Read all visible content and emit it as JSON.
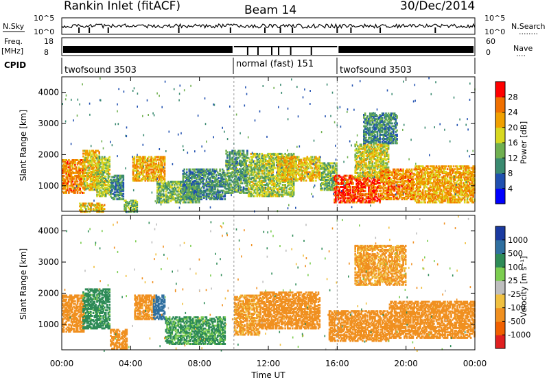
{
  "header": {
    "station": "Rankin Inlet (fitACF)",
    "beam": "Beam 14",
    "date": "30/Dec/2014"
  },
  "noise_panel": {
    "left_label": "N.Sky",
    "right_label": "N.Search",
    "right_dots": "........",
    "left_ticks": [
      "10^5",
      "10^0"
    ],
    "right_ticks": [
      "10^5",
      "10^0"
    ]
  },
  "freq_panel": {
    "left_label_1": "Freq.",
    "left_label_2": "[MHz]",
    "left_ticks": [
      "18",
      "8"
    ],
    "right_label": "Nave",
    "right_dots": "....",
    "right_ticks": [
      "60",
      "0"
    ]
  },
  "cpid_panel": {
    "label": "CPID",
    "segments": [
      {
        "label": "twofsound 3503",
        "start_h": 0,
        "end_h": 10
      },
      {
        "label": "normal (fast) 151",
        "start_h": 10,
        "end_h": 16
      },
      {
        "label": "twofsound 3503",
        "start_h": 16,
        "end_h": 24
      }
    ]
  },
  "axes": {
    "ylabel": "Slant Range [km]",
    "yticks": [
      "4000",
      "3000",
      "2000",
      "1000"
    ],
    "xticks": [
      "00:00",
      "04:00",
      "08:00",
      "12:00",
      "16:00",
      "20:00",
      "00:00"
    ],
    "xlabel": "Time UT"
  },
  "colorbars": {
    "power": {
      "label": "Power [dB]",
      "ticks": [
        "28",
        "24",
        "20",
        "16",
        "12",
        "8",
        "4"
      ],
      "colors": [
        "#0000ff",
        "#2050b0",
        "#3a8a70",
        "#70b050",
        "#d8d820",
        "#f0a000",
        "#f07000",
        "#ff0000"
      ]
    },
    "velocity": {
      "label": "Velocity [m s⁻¹]",
      "ticks": [
        "1000",
        "500",
        "100",
        "25",
        "-25",
        "-100",
        "-500",
        "-1000"
      ],
      "colors": [
        "#1a3aa0",
        "#3070a0",
        "#2e8b57",
        "#7ccd50",
        "#bebebe",
        "#f0c040",
        "#f09020",
        "#f06000",
        "#e02020"
      ]
    }
  },
  "chart_data": {
    "type": "heatmap",
    "x_range_hours": [
      0,
      24
    ],
    "y_range_km": [
      180,
      4500
    ],
    "time_resolution_note": "",
    "power_blobs": [
      {
        "t0": 0.0,
        "t1": 1.3,
        "r0": 800,
        "r1": 1900,
        "value": 24
      },
      {
        "t0": 1.2,
        "t1": 2.2,
        "r0": 900,
        "r1": 2200,
        "value": 20
      },
      {
        "t0": 2.0,
        "t1": 2.8,
        "r0": 700,
        "r1": 2000,
        "value": 16
      },
      {
        "t0": 1.0,
        "t1": 2.5,
        "r0": 200,
        "r1": 500,
        "value": 20
      },
      {
        "t0": 2.8,
        "t1": 3.6,
        "r0": 600,
        "r1": 1400,
        "value": 10
      },
      {
        "t0": 3.6,
        "t1": 4.4,
        "r0": 200,
        "r1": 600,
        "value": 14
      },
      {
        "t0": 4.1,
        "t1": 6.0,
        "r0": 1200,
        "r1": 2000,
        "value": 22
      },
      {
        "t0": 5.5,
        "t1": 8.0,
        "r0": 500,
        "r1": 1200,
        "value": 14
      },
      {
        "t0": 7.0,
        "t1": 9.5,
        "r0": 600,
        "r1": 1600,
        "value": 10
      },
      {
        "t0": 9.5,
        "t1": 10.8,
        "r0": 800,
        "r1": 2200,
        "value": 12
      },
      {
        "t0": 10.8,
        "t1": 13.5,
        "r0": 700,
        "r1": 2100,
        "value": 16
      },
      {
        "t0": 12.5,
        "t1": 15.0,
        "r0": 1200,
        "r1": 2000,
        "value": 20
      },
      {
        "t0": 15.0,
        "t1": 16.0,
        "r0": 900,
        "r1": 1800,
        "value": 14
      },
      {
        "t0": 15.8,
        "t1": 18.5,
        "r0": 500,
        "r1": 1400,
        "value": 28
      },
      {
        "t0": 17.0,
        "t1": 19.0,
        "r0": 1300,
        "r1": 2400,
        "value": 18
      },
      {
        "t0": 18.5,
        "t1": 20.5,
        "r0": 600,
        "r1": 1600,
        "value": 24
      },
      {
        "t0": 20.5,
        "t1": 24.0,
        "r0": 500,
        "r1": 1700,
        "value": 22
      },
      {
        "t0": 17.5,
        "t1": 19.5,
        "r0": 2400,
        "r1": 3400,
        "value": 10
      }
    ],
    "velocity_blobs": [
      {
        "t0": 0.0,
        "t1": 1.3,
        "r0": 800,
        "r1": 2000,
        "value": -300
      },
      {
        "t0": 1.2,
        "t1": 2.8,
        "r0": 900,
        "r1": 2200,
        "value": 200
      },
      {
        "t0": 2.8,
        "t1": 3.8,
        "r0": 250,
        "r1": 900,
        "value": -300
      },
      {
        "t0": 4.2,
        "t1": 5.4,
        "r0": 1200,
        "r1": 2000,
        "value": -200
      },
      {
        "t0": 5.3,
        "t1": 6.0,
        "r0": 1200,
        "r1": 2000,
        "value": 700
      },
      {
        "t0": 6.0,
        "t1": 9.5,
        "r0": 400,
        "r1": 1300,
        "value": 150
      },
      {
        "t0": 10.0,
        "t1": 11.5,
        "r0": 700,
        "r1": 2000,
        "value": -150
      },
      {
        "t0": 11.5,
        "t1": 15.0,
        "r0": 900,
        "r1": 2100,
        "value": -300
      },
      {
        "t0": 15.5,
        "t1": 19.0,
        "r0": 500,
        "r1": 1500,
        "value": -250
      },
      {
        "t0": 19.0,
        "t1": 24.0,
        "r0": 600,
        "r1": 1800,
        "value": -300
      },
      {
        "t0": 17.0,
        "t1": 20.0,
        "r0": 2300,
        "r1": 3600,
        "value": -150
      }
    ]
  }
}
